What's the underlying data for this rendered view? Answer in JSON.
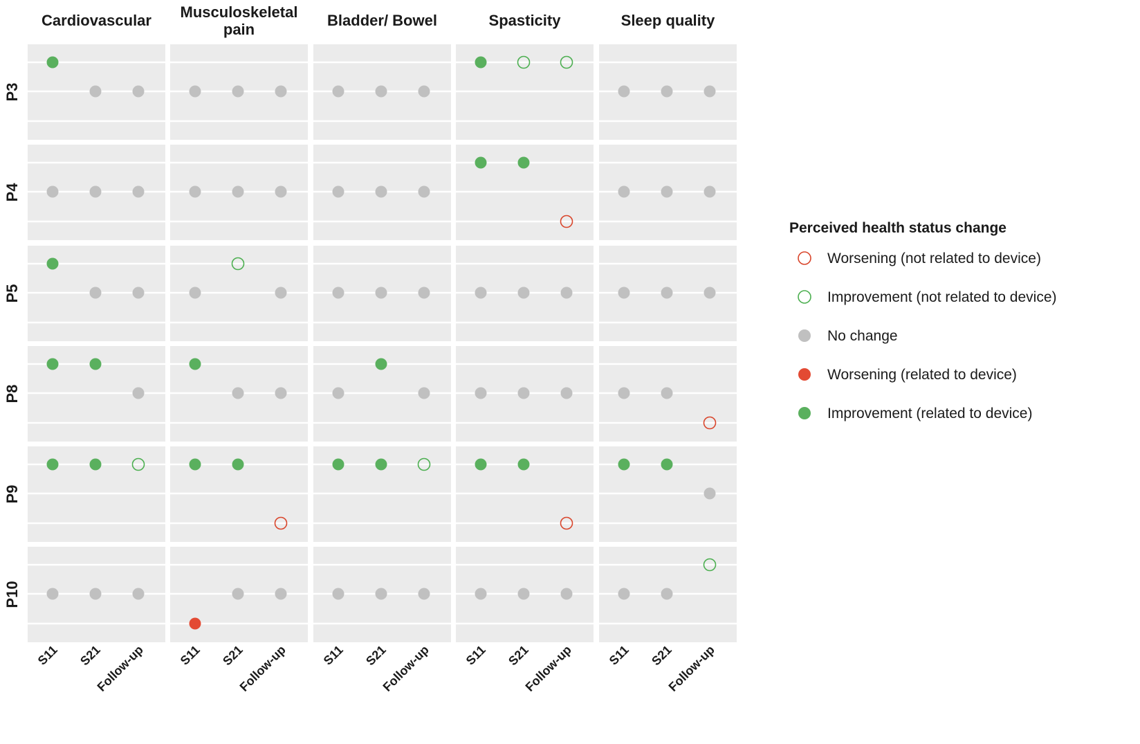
{
  "chart_data": {
    "type": "scatter",
    "title": "",
    "facet_columns": [
      "Cardiovascular",
      "Musculoskeletal pain",
      "Bladder/ Bowel",
      "Spasticity",
      "Sleep quality"
    ],
    "facet_columns_display": [
      [
        "Cardiovascular"
      ],
      [
        "Musculoskeletal",
        "pain"
      ],
      [
        "Bladder/ Bowel"
      ],
      [
        "Spasticity"
      ],
      [
        "Sleep quality"
      ]
    ],
    "facet_rows": [
      "P3",
      "P4",
      "P5",
      "P8",
      "P9",
      "P10"
    ],
    "x_categories": [
      "S11",
      "S21",
      "Follow-up"
    ],
    "y_levels_note": "within each panel: 3 = upper line, 2 = middle line, 1 = lower line",
    "ylim": [
      0.4,
      3.6
    ],
    "legend": {
      "title": "Perceived health status change",
      "position": "right",
      "items": [
        {
          "key": "worsening_not_device",
          "label": "Worsening (not related to device)",
          "filled": false,
          "color": "#d9452b"
        },
        {
          "key": "improvement_not_device",
          "label": "Improvement (not related to device)",
          "filled": false,
          "color": "#4caf50"
        },
        {
          "key": "no_change",
          "label": "No change",
          "filled": true,
          "color": "#c0c0c0"
        },
        {
          "key": "worsening_device",
          "label": "Worsening (related to device)",
          "filled": true,
          "color": "#e34a33"
        },
        {
          "key": "improvement_device",
          "label": "Improvement (related to device)",
          "filled": true,
          "color": "#5ab05e"
        }
      ]
    },
    "points": [
      {
        "row": "P3",
        "col": "Cardiovascular",
        "x": "S11",
        "y": 3,
        "status": "improvement_device"
      },
      {
        "row": "P3",
        "col": "Cardiovascular",
        "x": "S21",
        "y": 2,
        "status": "no_change"
      },
      {
        "row": "P3",
        "col": "Cardiovascular",
        "x": "Follow-up",
        "y": 2,
        "status": "no_change"
      },
      {
        "row": "P3",
        "col": "Musculoskeletal pain",
        "x": "S11",
        "y": 2,
        "status": "no_change"
      },
      {
        "row": "P3",
        "col": "Musculoskeletal pain",
        "x": "S21",
        "y": 2,
        "status": "no_change"
      },
      {
        "row": "P3",
        "col": "Musculoskeletal pain",
        "x": "Follow-up",
        "y": 2,
        "status": "no_change"
      },
      {
        "row": "P3",
        "col": "Bladder/ Bowel",
        "x": "S11",
        "y": 2,
        "status": "no_change"
      },
      {
        "row": "P3",
        "col": "Bladder/ Bowel",
        "x": "S21",
        "y": 2,
        "status": "no_change"
      },
      {
        "row": "P3",
        "col": "Bladder/ Bowel",
        "x": "Follow-up",
        "y": 2,
        "status": "no_change"
      },
      {
        "row": "P3",
        "col": "Spasticity",
        "x": "S11",
        "y": 3,
        "status": "improvement_device"
      },
      {
        "row": "P3",
        "col": "Spasticity",
        "x": "S21",
        "y": 3,
        "status": "improvement_not_device"
      },
      {
        "row": "P3",
        "col": "Spasticity",
        "x": "Follow-up",
        "y": 3,
        "status": "improvement_not_device"
      },
      {
        "row": "P3",
        "col": "Sleep quality",
        "x": "S11",
        "y": 2,
        "status": "no_change"
      },
      {
        "row": "P3",
        "col": "Sleep quality",
        "x": "S21",
        "y": 2,
        "status": "no_change"
      },
      {
        "row": "P3",
        "col": "Sleep quality",
        "x": "Follow-up",
        "y": 2,
        "status": "no_change"
      },
      {
        "row": "P4",
        "col": "Cardiovascular",
        "x": "S11",
        "y": 2,
        "status": "no_change"
      },
      {
        "row": "P4",
        "col": "Cardiovascular",
        "x": "S21",
        "y": 2,
        "status": "no_change"
      },
      {
        "row": "P4",
        "col": "Cardiovascular",
        "x": "Follow-up",
        "y": 2,
        "status": "no_change"
      },
      {
        "row": "P4",
        "col": "Musculoskeletal pain",
        "x": "S11",
        "y": 2,
        "status": "no_change"
      },
      {
        "row": "P4",
        "col": "Musculoskeletal pain",
        "x": "S21",
        "y": 2,
        "status": "no_change"
      },
      {
        "row": "P4",
        "col": "Musculoskeletal pain",
        "x": "Follow-up",
        "y": 2,
        "status": "no_change"
      },
      {
        "row": "P4",
        "col": "Bladder/ Bowel",
        "x": "S11",
        "y": 2,
        "status": "no_change"
      },
      {
        "row": "P4",
        "col": "Bladder/ Bowel",
        "x": "S21",
        "y": 2,
        "status": "no_change"
      },
      {
        "row": "P4",
        "col": "Bladder/ Bowel",
        "x": "Follow-up",
        "y": 2,
        "status": "no_change"
      },
      {
        "row": "P4",
        "col": "Spasticity",
        "x": "S11",
        "y": 3,
        "status": "improvement_device"
      },
      {
        "row": "P4",
        "col": "Spasticity",
        "x": "S21",
        "y": 3,
        "status": "improvement_device"
      },
      {
        "row": "P4",
        "col": "Spasticity",
        "x": "Follow-up",
        "y": 1,
        "status": "worsening_not_device"
      },
      {
        "row": "P4",
        "col": "Sleep quality",
        "x": "S11",
        "y": 2,
        "status": "no_change"
      },
      {
        "row": "P4",
        "col": "Sleep quality",
        "x": "S21",
        "y": 2,
        "status": "no_change"
      },
      {
        "row": "P4",
        "col": "Sleep quality",
        "x": "Follow-up",
        "y": 2,
        "status": "no_change"
      },
      {
        "row": "P5",
        "col": "Cardiovascular",
        "x": "S11",
        "y": 3,
        "status": "improvement_device"
      },
      {
        "row": "P5",
        "col": "Cardiovascular",
        "x": "S21",
        "y": 2,
        "status": "no_change"
      },
      {
        "row": "P5",
        "col": "Cardiovascular",
        "x": "Follow-up",
        "y": 2,
        "status": "no_change"
      },
      {
        "row": "P5",
        "col": "Musculoskeletal pain",
        "x": "S11",
        "y": 2,
        "status": "no_change"
      },
      {
        "row": "P5",
        "col": "Musculoskeletal pain",
        "x": "S21",
        "y": 3,
        "status": "improvement_not_device"
      },
      {
        "row": "P5",
        "col": "Musculoskeletal pain",
        "x": "Follow-up",
        "y": 2,
        "status": "no_change"
      },
      {
        "row": "P5",
        "col": "Bladder/ Bowel",
        "x": "S11",
        "y": 2,
        "status": "no_change"
      },
      {
        "row": "P5",
        "col": "Bladder/ Bowel",
        "x": "S21",
        "y": 2,
        "status": "no_change"
      },
      {
        "row": "P5",
        "col": "Bladder/ Bowel",
        "x": "Follow-up",
        "y": 2,
        "status": "no_change"
      },
      {
        "row": "P5",
        "col": "Spasticity",
        "x": "S11",
        "y": 2,
        "status": "no_change"
      },
      {
        "row": "P5",
        "col": "Spasticity",
        "x": "S21",
        "y": 2,
        "status": "no_change"
      },
      {
        "row": "P5",
        "col": "Spasticity",
        "x": "Follow-up",
        "y": 2,
        "status": "no_change"
      },
      {
        "row": "P5",
        "col": "Sleep quality",
        "x": "S11",
        "y": 2,
        "status": "no_change"
      },
      {
        "row": "P5",
        "col": "Sleep quality",
        "x": "S21",
        "y": 2,
        "status": "no_change"
      },
      {
        "row": "P5",
        "col": "Sleep quality",
        "x": "Follow-up",
        "y": 2,
        "status": "no_change"
      },
      {
        "row": "P8",
        "col": "Cardiovascular",
        "x": "S11",
        "y": 3,
        "status": "improvement_device"
      },
      {
        "row": "P8",
        "col": "Cardiovascular",
        "x": "S21",
        "y": 3,
        "status": "improvement_device"
      },
      {
        "row": "P8",
        "col": "Cardiovascular",
        "x": "Follow-up",
        "y": 2,
        "status": "no_change"
      },
      {
        "row": "P8",
        "col": "Musculoskeletal pain",
        "x": "S11",
        "y": 3,
        "status": "improvement_device"
      },
      {
        "row": "P8",
        "col": "Musculoskeletal pain",
        "x": "S21",
        "y": 2,
        "status": "no_change"
      },
      {
        "row": "P8",
        "col": "Musculoskeletal pain",
        "x": "Follow-up",
        "y": 2,
        "status": "no_change"
      },
      {
        "row": "P8",
        "col": "Bladder/ Bowel",
        "x": "S11",
        "y": 2,
        "status": "no_change"
      },
      {
        "row": "P8",
        "col": "Bladder/ Bowel",
        "x": "S21",
        "y": 3,
        "status": "improvement_device"
      },
      {
        "row": "P8",
        "col": "Bladder/ Bowel",
        "x": "Follow-up",
        "y": 2,
        "status": "no_change"
      },
      {
        "row": "P8",
        "col": "Spasticity",
        "x": "S11",
        "y": 2,
        "status": "no_change"
      },
      {
        "row": "P8",
        "col": "Spasticity",
        "x": "S21",
        "y": 2,
        "status": "no_change"
      },
      {
        "row": "P8",
        "col": "Spasticity",
        "x": "Follow-up",
        "y": 2,
        "status": "no_change"
      },
      {
        "row": "P8",
        "col": "Sleep quality",
        "x": "S11",
        "y": 2,
        "status": "no_change"
      },
      {
        "row": "P8",
        "col": "Sleep quality",
        "x": "S21",
        "y": 2,
        "status": "no_change"
      },
      {
        "row": "P8",
        "col": "Sleep quality",
        "x": "Follow-up",
        "y": 1,
        "status": "worsening_not_device"
      },
      {
        "row": "P9",
        "col": "Cardiovascular",
        "x": "S11",
        "y": 3,
        "status": "improvement_device"
      },
      {
        "row": "P9",
        "col": "Cardiovascular",
        "x": "S21",
        "y": 3,
        "status": "improvement_device"
      },
      {
        "row": "P9",
        "col": "Cardiovascular",
        "x": "Follow-up",
        "y": 3,
        "status": "improvement_not_device"
      },
      {
        "row": "P9",
        "col": "Musculoskeletal pain",
        "x": "S11",
        "y": 3,
        "status": "improvement_device"
      },
      {
        "row": "P9",
        "col": "Musculoskeletal pain",
        "x": "S21",
        "y": 3,
        "status": "improvement_device"
      },
      {
        "row": "P9",
        "col": "Musculoskeletal pain",
        "x": "Follow-up",
        "y": 1,
        "status": "worsening_not_device"
      },
      {
        "row": "P9",
        "col": "Bladder/ Bowel",
        "x": "S11",
        "y": 3,
        "status": "improvement_device"
      },
      {
        "row": "P9",
        "col": "Bladder/ Bowel",
        "x": "S21",
        "y": 3,
        "status": "improvement_device"
      },
      {
        "row": "P9",
        "col": "Bladder/ Bowel",
        "x": "Follow-up",
        "y": 3,
        "status": "improvement_not_device"
      },
      {
        "row": "P9",
        "col": "Spasticity",
        "x": "S11",
        "y": 3,
        "status": "improvement_device"
      },
      {
        "row": "P9",
        "col": "Spasticity",
        "x": "S21",
        "y": 3,
        "status": "improvement_device"
      },
      {
        "row": "P9",
        "col": "Spasticity",
        "x": "Follow-up",
        "y": 1,
        "status": "worsening_not_device"
      },
      {
        "row": "P9",
        "col": "Sleep quality",
        "x": "S11",
        "y": 3,
        "status": "improvement_device"
      },
      {
        "row": "P9",
        "col": "Sleep quality",
        "x": "S21",
        "y": 3,
        "status": "improvement_device"
      },
      {
        "row": "P9",
        "col": "Sleep quality",
        "x": "Follow-up",
        "y": 2,
        "status": "no_change"
      },
      {
        "row": "P10",
        "col": "Cardiovascular",
        "x": "S11",
        "y": 2,
        "status": "no_change"
      },
      {
        "row": "P10",
        "col": "Cardiovascular",
        "x": "S21",
        "y": 2,
        "status": "no_change"
      },
      {
        "row": "P10",
        "col": "Cardiovascular",
        "x": "Follow-up",
        "y": 2,
        "status": "no_change"
      },
      {
        "row": "P10",
        "col": "Musculoskeletal pain",
        "x": "S11",
        "y": 1,
        "status": "worsening_device"
      },
      {
        "row": "P10",
        "col": "Musculoskeletal pain",
        "x": "S21",
        "y": 2,
        "status": "no_change"
      },
      {
        "row": "P10",
        "col": "Musculoskeletal pain",
        "x": "Follow-up",
        "y": 2,
        "status": "no_change"
      },
      {
        "row": "P10",
        "col": "Bladder/ Bowel",
        "x": "S11",
        "y": 2,
        "status": "no_change"
      },
      {
        "row": "P10",
        "col": "Bladder/ Bowel",
        "x": "S21",
        "y": 2,
        "status": "no_change"
      },
      {
        "row": "P10",
        "col": "Bladder/ Bowel",
        "x": "Follow-up",
        "y": 2,
        "status": "no_change"
      },
      {
        "row": "P10",
        "col": "Spasticity",
        "x": "S11",
        "y": 2,
        "status": "no_change"
      },
      {
        "row": "P10",
        "col": "Spasticity",
        "x": "S21",
        "y": 2,
        "status": "no_change"
      },
      {
        "row": "P10",
        "col": "Spasticity",
        "x": "Follow-up",
        "y": 2,
        "status": "no_change"
      },
      {
        "row": "P10",
        "col": "Sleep quality",
        "x": "S11",
        "y": 2,
        "status": "no_change"
      },
      {
        "row": "P10",
        "col": "Sleep quality",
        "x": "S21",
        "y": 2,
        "status": "no_change"
      },
      {
        "row": "P10",
        "col": "Sleep quality",
        "x": "Follow-up",
        "y": 3,
        "status": "improvement_not_device"
      }
    ],
    "colors": {
      "panel_background": "#ebebeb",
      "grid_line": "#ffffff"
    }
  }
}
